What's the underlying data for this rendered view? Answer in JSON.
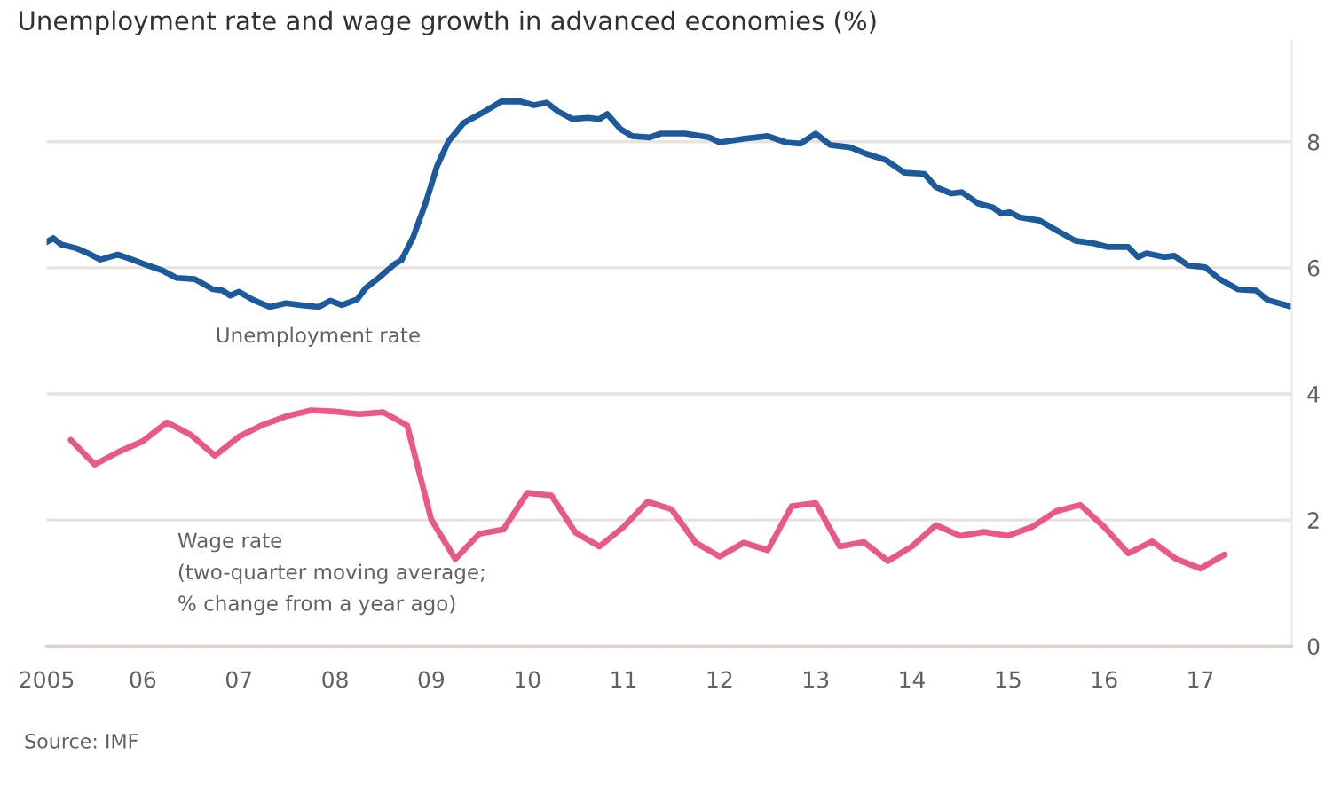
{
  "chart_data": {
    "type": "line",
    "title": "Unemployment rate and wage growth in advanced economies (%)",
    "xlim": [
      2005,
      2017.95
    ],
    "ylim": [
      0,
      9.6
    ],
    "xticks": [
      {
        "value": 2005,
        "label": "2005"
      },
      {
        "value": 2006,
        "label": "06"
      },
      {
        "value": 2007,
        "label": "07"
      },
      {
        "value": 2008,
        "label": "08"
      },
      {
        "value": 2009,
        "label": "09"
      },
      {
        "value": 2010,
        "label": "10"
      },
      {
        "value": 2011,
        "label": "11"
      },
      {
        "value": 2012,
        "label": "12"
      },
      {
        "value": 2013,
        "label": "13"
      },
      {
        "value": 2014,
        "label": "14"
      },
      {
        "value": 2015,
        "label": "15"
      },
      {
        "value": 2016,
        "label": "16"
      },
      {
        "value": 2017,
        "label": "17"
      }
    ],
    "yticks": [
      0,
      2,
      4,
      6,
      8
    ],
    "grid": "y",
    "legend": false,
    "series": [
      {
        "name": "Unemployment rate",
        "color": "#1d5a9b",
        "x": [
          2005.0,
          2005.07,
          2005.15,
          2005.31,
          2005.43,
          2005.56,
          2005.74,
          2005.89,
          2006.01,
          2006.2,
          2006.35,
          2006.54,
          2006.73,
          2006.83,
          2006.91,
          2007.0,
          2007.15,
          2007.32,
          2007.49,
          2007.64,
          2007.83,
          2007.95,
          2008.07,
          2008.23,
          2008.32,
          2008.47,
          2008.62,
          2008.69,
          2008.81,
          2008.94,
          2009.06,
          2009.18,
          2009.34,
          2009.52,
          2009.73,
          2009.92,
          2010.07,
          2010.2,
          2010.32,
          2010.47,
          2010.63,
          2010.75,
          2010.83,
          2010.97,
          2011.09,
          2011.27,
          2011.39,
          2011.64,
          2011.89,
          2012.0,
          2012.26,
          2012.5,
          2012.69,
          2012.84,
          2013.0,
          2013.15,
          2013.36,
          2013.52,
          2013.73,
          2013.92,
          2014.13,
          2014.25,
          2014.41,
          2014.52,
          2014.69,
          2014.84,
          2014.93,
          2015.02,
          2015.12,
          2015.33,
          2015.52,
          2015.7,
          2015.89,
          2016.04,
          2016.25,
          2016.35,
          2016.44,
          2016.62,
          2016.73,
          2016.87,
          2017.05,
          2017.2,
          2017.39,
          2017.58,
          2017.7,
          2017.93
        ],
        "values": [
          6.41,
          6.47,
          6.37,
          6.31,
          6.23,
          6.13,
          6.21,
          6.13,
          6.06,
          5.96,
          5.84,
          5.82,
          5.66,
          5.64,
          5.56,
          5.62,
          5.49,
          5.38,
          5.44,
          5.41,
          5.38,
          5.48,
          5.41,
          5.5,
          5.68,
          5.86,
          6.06,
          6.12,
          6.48,
          7.02,
          7.61,
          8.01,
          8.3,
          8.45,
          8.64,
          8.64,
          8.58,
          8.62,
          8.48,
          8.36,
          8.38,
          8.36,
          8.44,
          8.2,
          8.09,
          8.07,
          8.13,
          8.13,
          8.07,
          7.99,
          8.05,
          8.09,
          7.99,
          7.97,
          8.13,
          7.95,
          7.91,
          7.81,
          7.71,
          7.51,
          7.49,
          7.28,
          7.18,
          7.2,
          7.02,
          6.96,
          6.86,
          6.88,
          6.8,
          6.75,
          6.58,
          6.43,
          6.39,
          6.33,
          6.33,
          6.17,
          6.23,
          6.17,
          6.19,
          6.04,
          6.01,
          5.82,
          5.66,
          5.64,
          5.49,
          5.39
        ]
      },
      {
        "name": "Wage rate\n(two-quarter moving average;\n% change from a year ago)",
        "color": "#e9588a",
        "x": [
          2005.25,
          2005.5,
          2005.75,
          2006.0,
          2006.25,
          2006.5,
          2006.75,
          2007.0,
          2007.25,
          2007.5,
          2007.75,
          2008.0,
          2008.25,
          2008.5,
          2008.75,
          2009.0,
          2009.25,
          2009.5,
          2009.75,
          2010.0,
          2010.25,
          2010.5,
          2010.75,
          2011.0,
          2011.25,
          2011.5,
          2011.75,
          2012.0,
          2012.25,
          2012.5,
          2012.75,
          2013.0,
          2013.25,
          2013.5,
          2013.75,
          2014.0,
          2014.25,
          2014.5,
          2014.75,
          2015.0,
          2015.25,
          2015.5,
          2015.75,
          2016.0,
          2016.25,
          2016.5,
          2016.75,
          2017.0,
          2017.25
        ],
        "values": [
          3.27,
          2.88,
          3.08,
          3.25,
          3.55,
          3.35,
          3.02,
          3.32,
          3.51,
          3.65,
          3.74,
          3.72,
          3.68,
          3.71,
          3.5,
          2.01,
          1.38,
          1.78,
          1.85,
          2.43,
          2.39,
          1.8,
          1.58,
          1.89,
          2.29,
          2.17,
          1.64,
          1.42,
          1.64,
          1.52,
          2.22,
          2.27,
          1.58,
          1.65,
          1.35,
          1.58,
          1.92,
          1.75,
          1.81,
          1.75,
          1.89,
          2.14,
          2.24,
          1.89,
          1.47,
          1.66,
          1.38,
          1.23,
          1.45
        ]
      }
    ],
    "annotations": [
      "Source: IMF"
    ]
  }
}
